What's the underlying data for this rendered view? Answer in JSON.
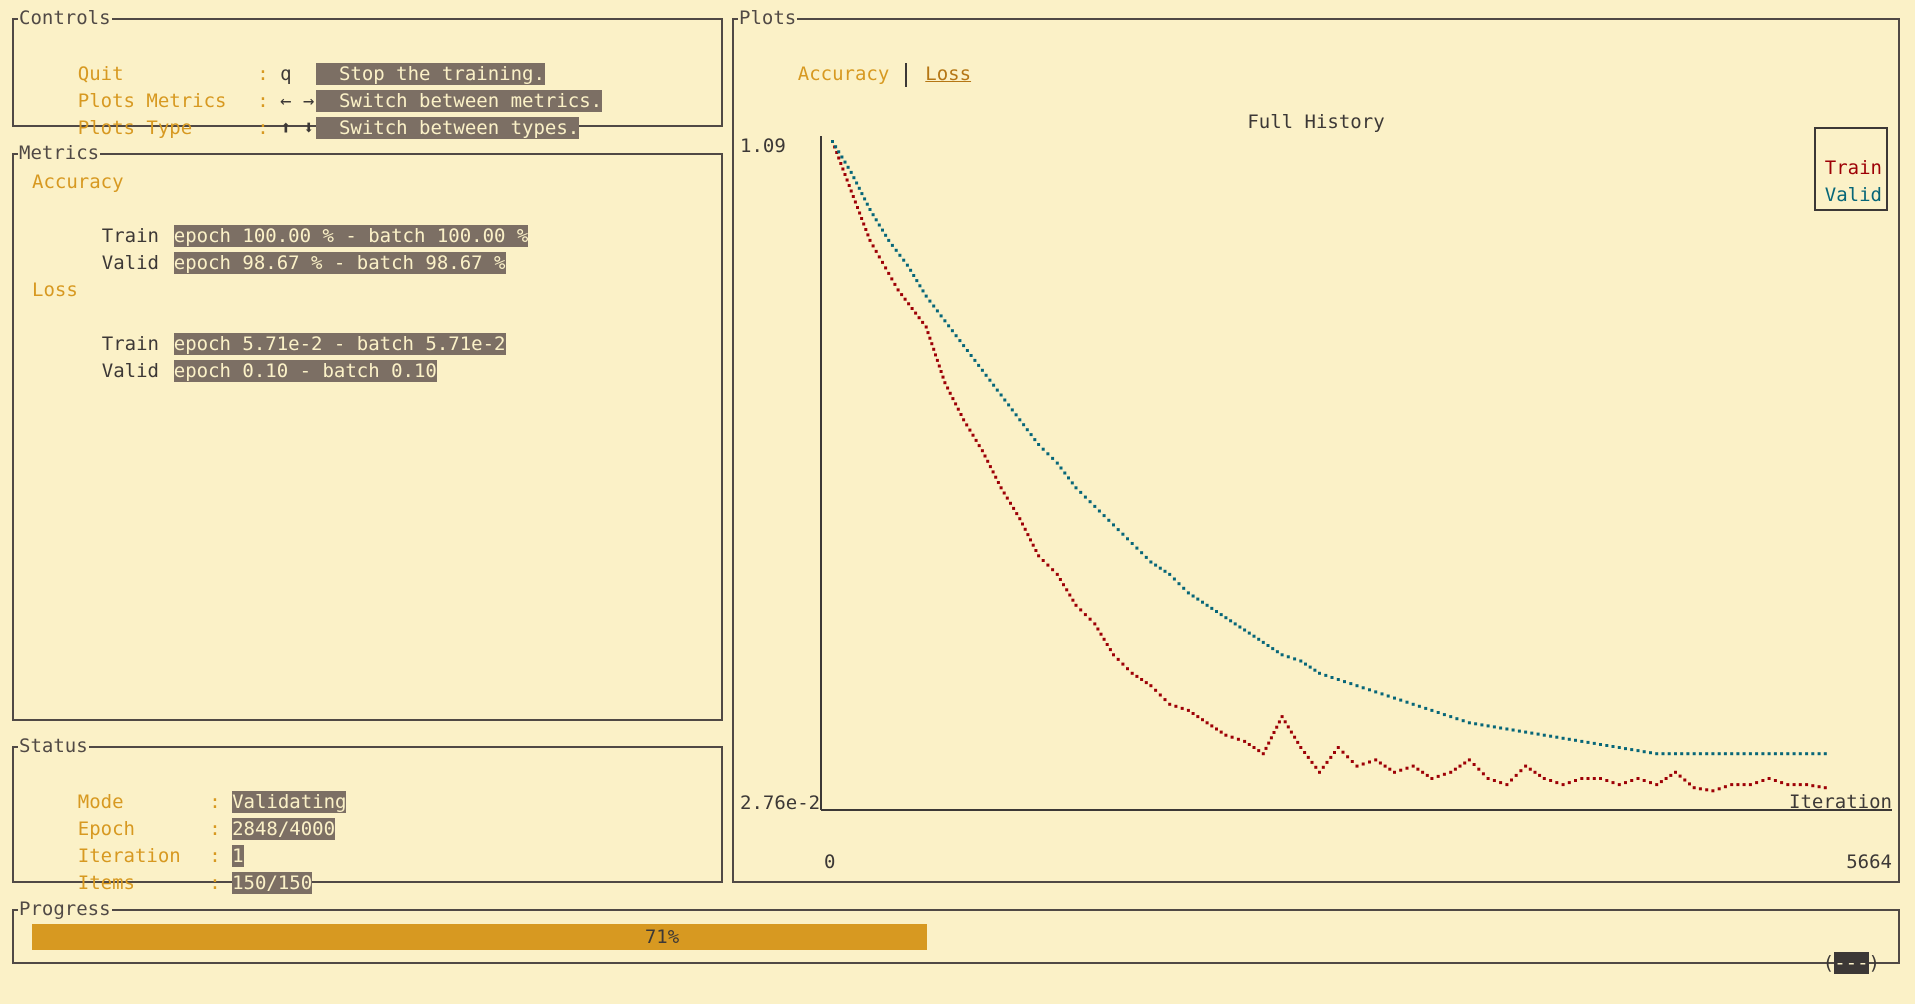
{
  "controls": {
    "title": "Controls",
    "items": [
      {
        "label": "Quit",
        "key": "q",
        "desc": "Stop the training."
      },
      {
        "label": "Plots Metrics",
        "key": "← →",
        "desc": "Switch between metrics."
      },
      {
        "label": "Plots Type",
        "key": "⬆ ⬇",
        "desc": "Switch between types."
      }
    ]
  },
  "metrics": {
    "title": "Metrics",
    "accuracy": {
      "heading": "Accuracy",
      "train_label": "Train",
      "train_value": "epoch 100.00 % - batch 100.00 %",
      "valid_label": "Valid",
      "valid_value": "epoch 98.67 % - batch 98.67 %"
    },
    "loss": {
      "heading": "Loss",
      "train_label": "Train",
      "train_value": "epoch 5.71e-2 - batch 5.71e-2",
      "valid_label": "Valid",
      "valid_value": "epoch 0.10 - batch 0.10"
    }
  },
  "status": {
    "title": "Status",
    "items": [
      {
        "label": "Mode",
        "value": "Validating"
      },
      {
        "label": "Epoch",
        "value": "2848/4000"
      },
      {
        "label": "Iteration",
        "value": "1"
      },
      {
        "label": "Items",
        "value": "150/150"
      }
    ]
  },
  "plots": {
    "title": "Plots",
    "tabs": [
      "Accuracy",
      "Loss"
    ],
    "active_tab": "Loss"
  },
  "progress": {
    "title": "Progress",
    "percent": 71,
    "label": "71%",
    "eta": "---"
  },
  "colors": {
    "background": "#fbf1c7",
    "accent": "#d79921",
    "highlight": "#7c6f64",
    "train": "#9d0006",
    "valid": "#076678"
  },
  "chart_data": {
    "type": "scatter",
    "title": "Full History",
    "xlabel": "Iteration",
    "xlim": [
      0,
      5664
    ],
    "ylim": [
      0.0276,
      1.09
    ],
    "x_tick_labels": [
      "0",
      "5664"
    ],
    "y_tick_labels": [
      "1.09",
      "2.76e-2"
    ],
    "legend": {
      "placement": "top-right",
      "entries": [
        "Train",
        "Valid"
      ]
    },
    "series": [
      {
        "name": "Train",
        "x": [
          0,
          200,
          350,
          500,
          600,
          700,
          800,
          900,
          1000,
          1100,
          1200,
          1300,
          1400,
          1500,
          1600,
          1700,
          1800,
          1900,
          2000,
          2100,
          2200,
          2300,
          2400,
          2500,
          2600,
          2700,
          2800,
          2900,
          3000,
          3100,
          3200,
          3300,
          3400,
          3500,
          3600,
          3700,
          3800,
          3900,
          4000,
          4100,
          4200,
          4300,
          4400,
          4500,
          4600,
          4700,
          4800,
          4900,
          5000,
          5100,
          5200,
          5300
        ],
        "y": [
          1.09,
          0.93,
          0.85,
          0.79,
          0.7,
          0.64,
          0.59,
          0.53,
          0.48,
          0.42,
          0.39,
          0.34,
          0.31,
          0.26,
          0.23,
          0.21,
          0.18,
          0.17,
          0.15,
          0.13,
          0.12,
          0.1,
          0.16,
          0.11,
          0.07,
          0.11,
          0.08,
          0.09,
          0.07,
          0.08,
          0.06,
          0.07,
          0.09,
          0.06,
          0.05,
          0.08,
          0.06,
          0.05,
          0.06,
          0.06,
          0.05,
          0.06,
          0.05,
          0.07,
          0.045,
          0.04,
          0.05,
          0.05,
          0.06,
          0.05,
          0.05,
          0.045
        ]
      },
      {
        "name": "Valid",
        "x": [
          0,
          100,
          200,
          300,
          400,
          500,
          600,
          700,
          800,
          900,
          1000,
          1100,
          1200,
          1300,
          1400,
          1500,
          1600,
          1700,
          1800,
          1900,
          2000,
          2100,
          2200,
          2300,
          2400,
          2500,
          2600,
          2700,
          2800,
          2900,
          3000,
          3100,
          3200,
          3300,
          3400,
          3500,
          3600,
          3700,
          3800,
          3900,
          4000,
          4100,
          4200,
          4300,
          4400,
          4500,
          4600,
          4700,
          4800,
          4900,
          5000,
          5100,
          5200,
          5300
        ],
        "y": [
          1.09,
          1.04,
          0.98,
          0.93,
          0.89,
          0.84,
          0.8,
          0.76,
          0.72,
          0.68,
          0.64,
          0.6,
          0.57,
          0.53,
          0.5,
          0.47,
          0.44,
          0.41,
          0.39,
          0.36,
          0.34,
          0.32,
          0.3,
          0.28,
          0.26,
          0.25,
          0.23,
          0.22,
          0.21,
          0.2,
          0.19,
          0.18,
          0.17,
          0.16,
          0.15,
          0.145,
          0.14,
          0.135,
          0.13,
          0.125,
          0.12,
          0.115,
          0.11,
          0.105,
          0.1,
          0.1,
          0.1,
          0.1,
          0.1,
          0.1,
          0.1,
          0.1,
          0.1,
          0.1
        ]
      }
    ]
  }
}
